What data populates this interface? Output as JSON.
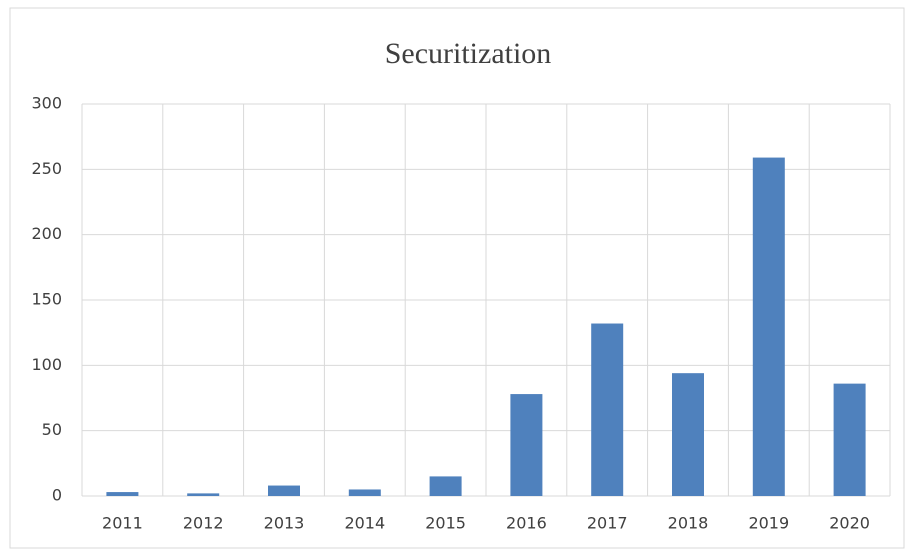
{
  "chart_data": {
    "type": "bar",
    "title": "Securitization",
    "categories": [
      "2011",
      "2012",
      "2013",
      "2014",
      "2015",
      "2016",
      "2017",
      "2018",
      "2019",
      "2020"
    ],
    "values": [
      3,
      2,
      8,
      5,
      15,
      78,
      132,
      94,
      259,
      86
    ],
    "color": "#4f81bd",
    "ylim": [
      0,
      300
    ],
    "yticks": [
      0,
      50,
      100,
      150,
      200,
      250,
      300
    ],
    "grid": true
  }
}
